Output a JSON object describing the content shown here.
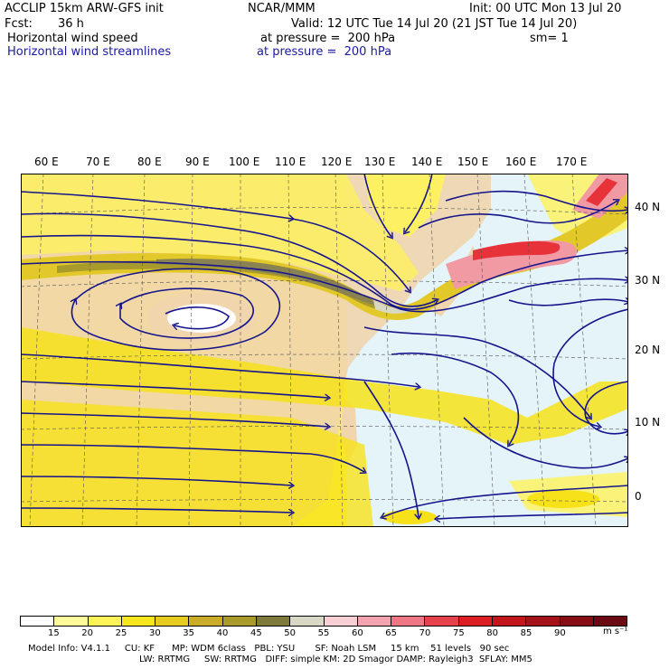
{
  "header": {
    "model": "ACCLIP 15km ARW-GFS init",
    "org": "NCAR/MMM",
    "init": "Init: 00 UTC Mon 13 Jul 20",
    "fcst_label": "Fcst:",
    "fcst_value": "36 h",
    "valid": "Valid: 12 UTC Tue 14 Jul 20 (21 JST Tue 14 Jul 20)",
    "field1_name": "Horizontal wind speed",
    "field1_level": "at pressure =  200 hPa",
    "field1_sm": "sm= 1",
    "field2_name": "Horizontal wind streamlines",
    "field2_level": "at pressure =  200 hPa"
  },
  "map": {
    "lon_labels": [
      "60 E",
      "70 E",
      "80 E",
      "90 E",
      "100 E",
      "110 E",
      "120 E",
      "130 E",
      "140 E",
      "150 E",
      "160 E",
      "170 E"
    ],
    "lat_labels": [
      "40 N",
      "30 N",
      "20 N",
      "10 N",
      "0"
    ],
    "colors": {
      "ocean_calm": "#e4f4f8",
      "land": "#f0d5ad",
      "yellow_light": "#fff35a",
      "yellow": "#f7e21a",
      "gold": "#e3c82a",
      "olive": "#a89b2b",
      "jet_core": "#8a8250",
      "pink": "#f29aa3",
      "red": "#e8323a",
      "streamline": "#15148c"
    }
  },
  "colorbar": {
    "ticks": [
      "15",
      "20",
      "25",
      "30",
      "35",
      "40",
      "45",
      "50",
      "55",
      "60",
      "65",
      "70",
      "75",
      "80",
      "85",
      "90"
    ],
    "units": "m s⁻¹",
    "colors": [
      "#ffffff",
      "#fffa9a",
      "#fff35a",
      "#f8e61c",
      "#e7cc20",
      "#c9ad28",
      "#a89b2b",
      "#7e7a3c",
      "#d9d8c4",
      "#f7cfd5",
      "#f4a4ae",
      "#ee7784",
      "#e7414c",
      "#dd1d24",
      "#c2151c",
      "#a4121a",
      "#870e16",
      "#6b0a12"
    ]
  },
  "footer": {
    "line1": "Model Info: V4.1.1     CU: KF      MP: WDM 6class   PBL: YSU       SF: Noah LSM     15 km    51 levels   90 sec",
    "line2": "LW: RRTMG     SW: RRTMG   DIFF: simple KM: 2D Smagor DAMP: Rayleigh3  SFLAY: MM5"
  }
}
